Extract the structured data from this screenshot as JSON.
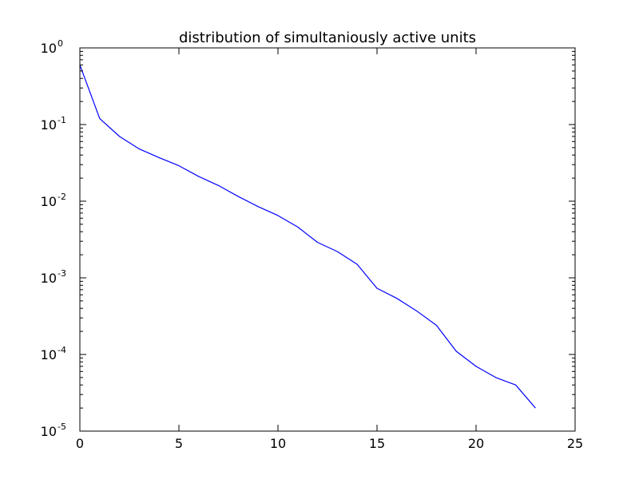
{
  "chart_data": {
    "type": "line",
    "title": "distribution of simultaniously active units",
    "xlabel": "",
    "ylabel": "",
    "xlim": [
      0,
      25
    ],
    "ylim": [
      1e-05,
      1
    ],
    "yscale": "log",
    "grid": false,
    "x_ticks": [
      0,
      5,
      10,
      15,
      20,
      25
    ],
    "x_tick_labels": [
      "0",
      "5",
      "10",
      "15",
      "20",
      "25"
    ],
    "y_ticks": [
      1,
      0.1,
      0.01,
      0.001,
      0.0001,
      1e-05
    ],
    "y_tick_labels": [
      {
        "base": "10",
        "exp": "0"
      },
      {
        "base": "10",
        "exp": "-1"
      },
      {
        "base": "10",
        "exp": "-2"
      },
      {
        "base": "10",
        "exp": "-3"
      },
      {
        "base": "10",
        "exp": "-4"
      },
      {
        "base": "10",
        "exp": "-5"
      }
    ],
    "series": [
      {
        "color": "#0000ff",
        "x": [
          0,
          1,
          2,
          3,
          4,
          5,
          6,
          7,
          8,
          9,
          10,
          11,
          12,
          13,
          14,
          15,
          16,
          17,
          18,
          19,
          20,
          21,
          22,
          23
        ],
        "y": [
          0.6,
          0.12,
          0.07,
          0.048,
          0.037,
          0.029,
          0.021,
          0.016,
          0.0115,
          0.0085,
          0.0065,
          0.0046,
          0.0029,
          0.0022,
          0.0015,
          0.00073,
          0.00054,
          0.00037,
          0.00024,
          0.00011,
          7e-05,
          5e-05,
          4e-05,
          2e-05
        ]
      }
    ]
  }
}
